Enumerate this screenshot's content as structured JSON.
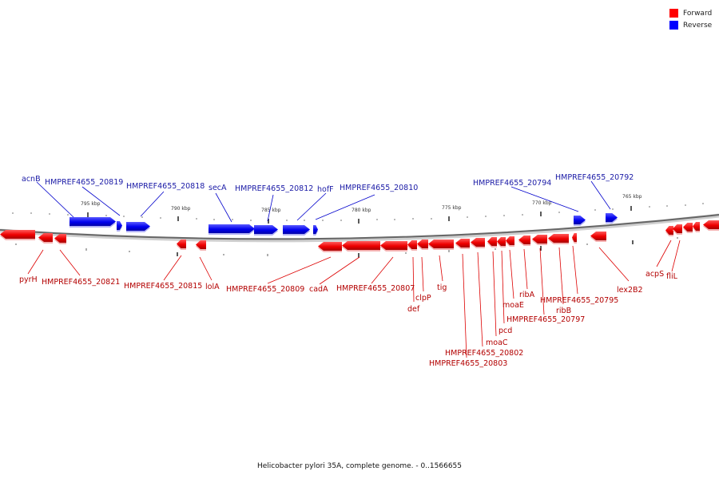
{
  "legend": {
    "forward_label": "Forward",
    "reverse_label": "Reverse",
    "forward_color": "#ff0000",
    "reverse_color": "#0000ff"
  },
  "caption": "Helicobacter pylori 35A, complete genome. - 0..1566655",
  "ticks": [
    "795 kbp",
    "790 kbp",
    "785 kbp",
    "780 kbp",
    "775 kbp",
    "770 kbp",
    "765 kbp"
  ],
  "reverse_genes": [
    "acnB",
    "HMPREF4655_20819",
    "HMPREF4655_20818",
    "secA",
    "HMPREF4655_20812",
    "hofF",
    "HMPREF4655_20810",
    "HMPREF4655_20794",
    "HMPREF4655_20792"
  ],
  "forward_genes": [
    "pyrH",
    "HMPREF4655_20821",
    "HMPREF4655_20815",
    "lolA",
    "HMPREF4655_20809",
    "cadA",
    "HMPREF4655_20807",
    "def",
    "clpP",
    "tig",
    "HMPREF4655_20803",
    "HMPREF4655_20802",
    "moaC",
    "pcd",
    "moaE",
    "HMPREF4655_20797",
    "ribA",
    "ribB",
    "HMPREF4655_20795",
    "lex2B2",
    "acpS",
    "fliL"
  ]
}
